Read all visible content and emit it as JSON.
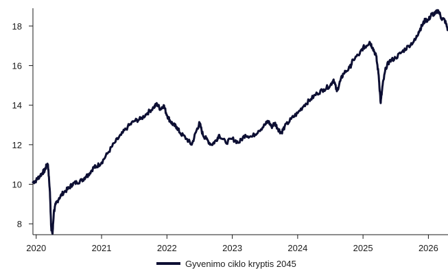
{
  "chart_data": {
    "type": "line",
    "title": "",
    "xlabel": "",
    "ylabel": "",
    "xlim": [
      2019.95,
      2026.3
    ],
    "ylim": [
      7.45,
      18.9
    ],
    "x_ticks": [
      2020,
      2021,
      2022,
      2023,
      2024,
      2025,
      2026
    ],
    "x_tick_labels": [
      "2020",
      "2021",
      "2022",
      "2023",
      "2024",
      "2025",
      "2026"
    ],
    "y_ticks": [
      8,
      10,
      12,
      14,
      16,
      18
    ],
    "y_tick_labels": [
      "8",
      "10",
      "12",
      "14",
      "16",
      "18"
    ],
    "grid": false,
    "legend_position": "bottom-center",
    "series": [
      {
        "name": "Gyvenimo ciklo kryptis 2045",
        "color": "#0d0f33",
        "x": [
          2019.95,
          2020.0,
          2020.05,
          2020.1,
          2020.13,
          2020.16,
          2020.18,
          2020.21,
          2020.23,
          2020.25,
          2020.27,
          2020.3,
          2020.35,
          2020.42,
          2020.5,
          2020.55,
          2020.62,
          2020.7,
          2020.76,
          2020.8,
          2020.88,
          2020.92,
          2021.0,
          2021.1,
          2021.2,
          2021.3,
          2021.4,
          2021.5,
          2021.6,
          2021.7,
          2021.8,
          2021.85,
          2021.9,
          2021.95,
          2022.0,
          2022.05,
          2022.1,
          2022.15,
          2022.2,
          2022.3,
          2022.38,
          2022.45,
          2022.5,
          2022.55,
          2022.6,
          2022.68,
          2022.75,
          2022.8,
          2022.9,
          2023.0,
          2023.1,
          2023.2,
          2023.3,
          2023.4,
          2023.5,
          2023.55,
          2023.6,
          2023.65,
          2023.7,
          2023.75,
          2023.8,
          2023.9,
          2024.0,
          2024.1,
          2024.2,
          2024.3,
          2024.4,
          2024.5,
          2024.55,
          2024.6,
          2024.65,
          2024.7,
          2024.8,
          2024.85,
          2024.95,
          2025.0,
          2025.05,
          2025.1,
          2025.15,
          2025.2,
          2025.24,
          2025.27,
          2025.3,
          2025.35,
          2025.4,
          2025.5,
          2025.6,
          2025.7,
          2025.8,
          2025.85,
          2025.9,
          2025.95,
          2026.0,
          2026.05,
          2026.1,
          2026.15,
          2026.2,
          2026.25,
          2026.3
        ],
        "values": [
          10.1,
          10.2,
          10.4,
          10.6,
          10.7,
          10.95,
          11.0,
          9.6,
          7.8,
          7.5,
          8.6,
          9.0,
          9.3,
          9.6,
          9.8,
          10.0,
          10.1,
          10.2,
          10.4,
          10.5,
          10.85,
          10.9,
          11.1,
          11.6,
          12.1,
          12.5,
          12.9,
          13.2,
          13.3,
          13.6,
          13.9,
          14.05,
          13.8,
          14.0,
          13.5,
          13.2,
          13.0,
          12.9,
          12.6,
          12.3,
          12.0,
          12.7,
          13.1,
          12.5,
          12.3,
          12.0,
          12.2,
          12.5,
          12.1,
          12.3,
          12.1,
          12.5,
          12.4,
          12.7,
          13.0,
          13.2,
          12.9,
          13.1,
          12.8,
          12.6,
          12.9,
          13.3,
          13.6,
          14.0,
          14.3,
          14.6,
          14.8,
          15.0,
          15.3,
          14.7,
          15.2,
          15.6,
          15.9,
          16.3,
          16.6,
          16.9,
          17.0,
          17.2,
          16.9,
          16.5,
          15.5,
          14.1,
          15.0,
          15.9,
          16.2,
          16.4,
          16.7,
          17.0,
          17.3,
          17.7,
          18.0,
          18.3,
          18.3,
          18.6,
          18.6,
          18.8,
          18.4,
          18.3,
          17.8
        ]
      }
    ]
  }
}
